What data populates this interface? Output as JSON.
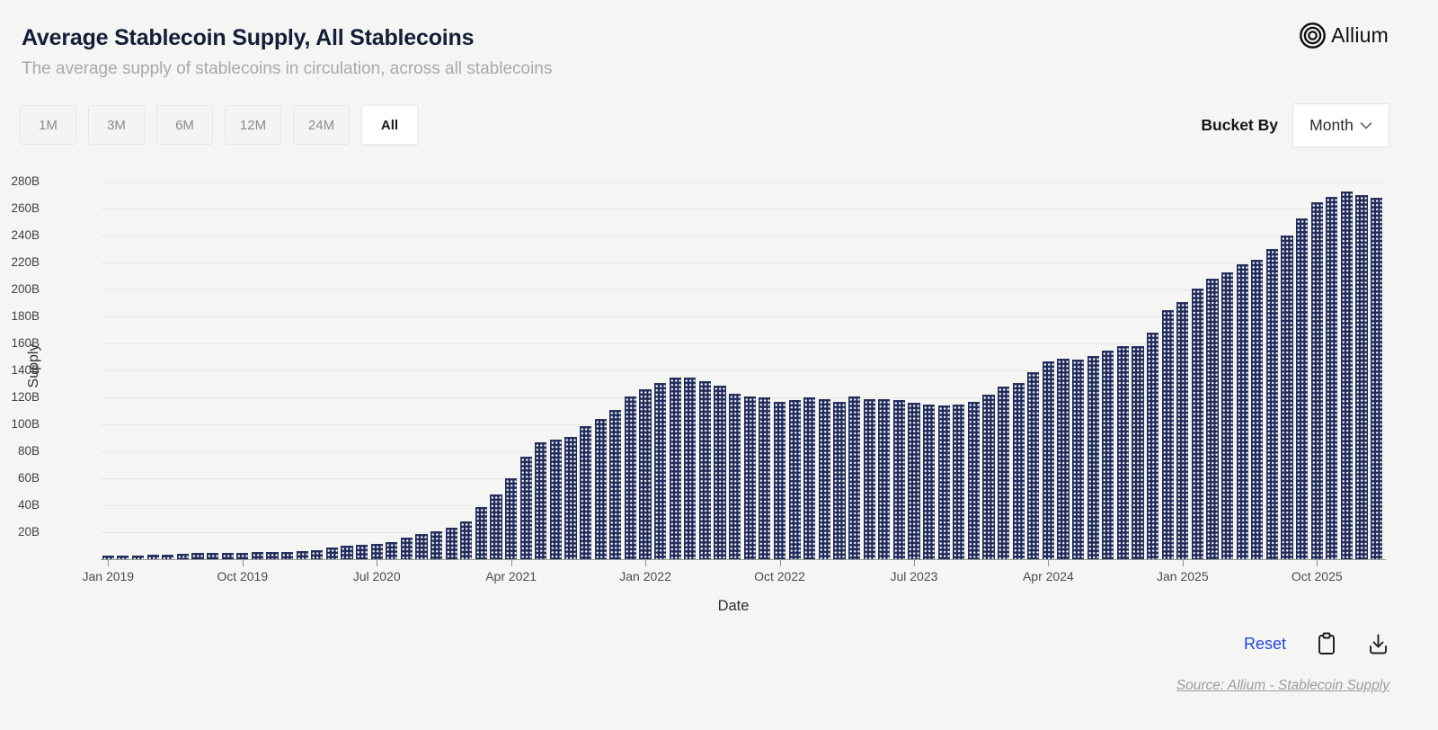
{
  "header": {
    "title": "Average Stablecoin Supply, All Stablecoins",
    "subtitle": "The average supply of stablecoins in circulation, across all stablecoins",
    "brand": "Allium"
  },
  "toolbar": {
    "range_buttons": [
      "1M",
      "3M",
      "6M",
      "12M",
      "24M",
      "All"
    ],
    "active_range": "All",
    "bucket_by_label": "Bucket By",
    "bucket_value": "Month"
  },
  "chart_data": {
    "type": "bar",
    "title": "Average Stablecoin Supply, All Stablecoins",
    "xlabel": "Date",
    "ylabel": "Supply",
    "bar_color": "#1f2b5a",
    "grid": true,
    "legend": "none",
    "ylim": [
      0,
      285
    ],
    "y_tick_step": 20,
    "y_tick_labels": [
      "20B",
      "40B",
      "60B",
      "80B",
      "100B",
      "120B",
      "140B",
      "160B",
      "180B",
      "200B",
      "220B",
      "240B",
      "260B",
      "280B"
    ],
    "x_tick_indices": [
      0,
      9,
      18,
      27,
      36,
      45,
      54,
      63,
      72,
      81
    ],
    "categories": [
      "Jan 2019",
      "Feb 2019",
      "Mar 2019",
      "Apr 2019",
      "May 2019",
      "Jun 2019",
      "Jul 2019",
      "Aug 2019",
      "Sep 2019",
      "Oct 2019",
      "Nov 2019",
      "Dec 2019",
      "Jan 2020",
      "Feb 2020",
      "Mar 2020",
      "Apr 2020",
      "May 2020",
      "Jun 2020",
      "Jul 2020",
      "Aug 2020",
      "Sep 2020",
      "Oct 2020",
      "Nov 2020",
      "Dec 2020",
      "Jan 2021",
      "Feb 2021",
      "Mar 2021",
      "Apr 2021",
      "May 2021",
      "Jun 2021",
      "Jul 2021",
      "Aug 2021",
      "Sep 2021",
      "Oct 2021",
      "Nov 2021",
      "Dec 2021",
      "Jan 2022",
      "Feb 2022",
      "Mar 2022",
      "Apr 2022",
      "May 2022",
      "Jun 2022",
      "Jul 2022",
      "Aug 2022",
      "Sep 2022",
      "Oct 2022",
      "Nov 2022",
      "Dec 2022",
      "Jan 2023",
      "Feb 2023",
      "Mar 2023",
      "Apr 2023",
      "May 2023",
      "Jun 2023",
      "Jul 2023",
      "Aug 2023",
      "Sep 2023",
      "Oct 2023",
      "Nov 2023",
      "Dec 2023",
      "Jan 2024",
      "Feb 2024",
      "Mar 2024",
      "Apr 2024",
      "May 2024",
      "Jun 2024",
      "Jul 2024",
      "Aug 2024",
      "Sep 2024",
      "Oct 2024",
      "Nov 2024",
      "Dec 2024",
      "Jan 2025",
      "Feb 2025",
      "Mar 2025",
      "Apr 2025",
      "May 2025",
      "Jun 2025",
      "Jul 2025",
      "Aug 2025",
      "Sep 2025",
      "Oct 2025",
      "Nov 2025",
      "Dec 2025",
      "Jan 2026",
      "Feb 2026"
    ],
    "values": [
      2.6,
      2.7,
      2.8,
      3.2,
      3.6,
      4.2,
      4.6,
      4.8,
      4.9,
      5.0,
      5.1,
      5.2,
      5.5,
      5.8,
      6.8,
      8.5,
      10,
      11,
      11.5,
      13,
      16,
      18.5,
      21,
      23.5,
      28,
      39,
      48,
      60,
      76,
      87,
      89,
      91,
      99,
      104,
      111,
      121,
      126,
      131,
      135,
      135,
      132,
      129,
      123,
      121,
      120,
      117,
      118,
      120,
      119,
      117,
      121,
      119,
      119,
      118,
      116,
      115,
      114,
      115,
      117,
      122,
      128,
      131,
      139,
      147,
      149,
      148,
      151,
      155,
      158,
      158,
      168,
      185,
      191,
      201,
      208,
      213,
      219,
      222,
      230,
      240,
      253,
      265,
      269,
      273,
      270,
      268
    ]
  },
  "footer": {
    "reset_label": "Reset",
    "icons": [
      "clipboard-icon",
      "download-icon"
    ],
    "source": "Source: Allium - Stablecoin Supply"
  }
}
